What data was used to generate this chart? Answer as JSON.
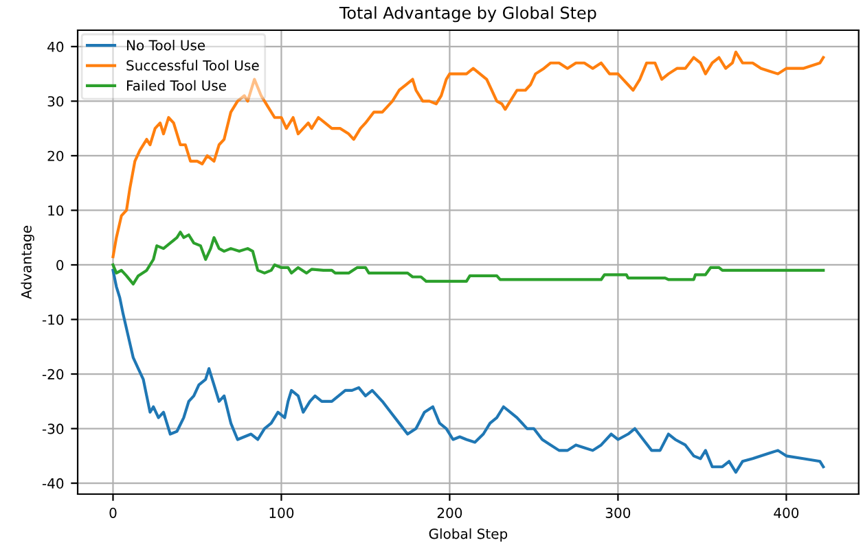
{
  "chart_data": {
    "type": "line",
    "title": "Total Advantage by Global Step",
    "xlabel": "Global Step",
    "ylabel": "Advantage",
    "xlim": [
      -21,
      443
    ],
    "ylim": [
      -42,
      43
    ],
    "xticks": [
      0,
      100,
      200,
      300,
      400
    ],
    "yticks": [
      -40,
      -30,
      -20,
      -10,
      0,
      10,
      20,
      30,
      40
    ],
    "grid": true,
    "legend": "top left",
    "marker": "none",
    "line_style": "solid",
    "series": [
      {
        "name": "No Tool Use",
        "color": "#1f77b4",
        "x": [
          0,
          2,
          4,
          6,
          9,
          12,
          15,
          18,
          20,
          22,
          24,
          27,
          30,
          32,
          34,
          38,
          42,
          45,
          48,
          51,
          55,
          57,
          60,
          63,
          66,
          70,
          74,
          78,
          82,
          86,
          90,
          94,
          98,
          102,
          104,
          106,
          110,
          113,
          117,
          120,
          124,
          130,
          134,
          138,
          142,
          146,
          150,
          154,
          160,
          165,
          170,
          175,
          180,
          185,
          190,
          194,
          198,
          202,
          206,
          210,
          215,
          220,
          224,
          228,
          232,
          236,
          240,
          246,
          250,
          255,
          260,
          265,
          270,
          275,
          280,
          285,
          290,
          296,
          300,
          306,
          310,
          315,
          320,
          325,
          330,
          334,
          340,
          345,
          349,
          352,
          356,
          362,
          366,
          370,
          374,
          380,
          385,
          390,
          395,
          400,
          410,
          420,
          422
        ],
        "values": [
          -1,
          -4,
          -6,
          -9,
          -13,
          -17,
          -19,
          -21,
          -24,
          -27,
          -26,
          -28,
          -27,
          -29,
          -31,
          -30.5,
          -28,
          -25,
          -24,
          -22,
          -21,
          -19,
          -22,
          -25,
          -24,
          -29,
          -32,
          -31.5,
          -31,
          -32,
          -30,
          -29,
          -27,
          -28,
          -25,
          -23,
          -24,
          -27,
          -25,
          -24,
          -25,
          -25,
          -24,
          -23,
          -23,
          -22.5,
          -24,
          -23,
          -25,
          -27,
          -29,
          -31,
          -30,
          -27,
          -26,
          -29,
          -30,
          -32,
          -31.5,
          -32,
          -32.5,
          -31,
          -29,
          -28,
          -26,
          -27,
          -28,
          -30,
          -30,
          -32,
          -33,
          -34,
          -34,
          -33,
          -33.5,
          -34,
          -33,
          -31,
          -32,
          -31,
          -30,
          -32,
          -34,
          -34,
          -31,
          -32,
          -33,
          -35,
          -35.5,
          -34,
          -37,
          -37,
          -36,
          -38,
          -36,
          -35.5,
          -35,
          -34.5,
          -34,
          -35,
          -35.5,
          -36,
          -37
        ]
      },
      {
        "name": "Successful Tool Use",
        "color": "#ff7f0e",
        "x": [
          0,
          2,
          5,
          8,
          10,
          13,
          16,
          20,
          22,
          25,
          28,
          30,
          33,
          36,
          40,
          43,
          46,
          50,
          53,
          56,
          60,
          63,
          66,
          70,
          74,
          78,
          80,
          84,
          88,
          92,
          96,
          100,
          103,
          107,
          110,
          113,
          116,
          118,
          122,
          126,
          130,
          135,
          140,
          143,
          147,
          150,
          155,
          160,
          166,
          170,
          174,
          178,
          180,
          184,
          188,
          192,
          195,
          198,
          200,
          205,
          210,
          214,
          218,
          222,
          225,
          228,
          231,
          233,
          236,
          240,
          245,
          248,
          251,
          256,
          260,
          265,
          270,
          275,
          280,
          285,
          290,
          295,
          300,
          303,
          306,
          309,
          313,
          317,
          322,
          326,
          330,
          335,
          340,
          345,
          349,
          352,
          356,
          360,
          364,
          368,
          370,
          374,
          380,
          385,
          390,
          395,
          400,
          410,
          420,
          422
        ],
        "values": [
          1.5,
          5,
          9,
          10,
          14,
          19,
          21,
          23,
          22,
          25,
          26,
          24,
          27,
          26,
          22,
          22,
          19,
          19,
          18.5,
          20,
          19,
          22,
          23,
          28,
          30,
          31,
          30,
          34,
          31,
          29,
          27,
          27,
          25,
          27,
          24,
          25,
          26,
          25,
          27,
          26,
          25,
          25,
          24,
          23,
          25,
          26,
          28,
          28,
          30,
          32,
          33,
          34,
          32,
          30,
          30,
          29.5,
          31,
          34,
          35,
          35,
          35,
          36,
          35,
          34,
          32,
          30,
          29.5,
          28.5,
          30,
          32,
          32,
          33,
          35,
          36,
          37,
          37,
          36,
          37,
          37,
          36,
          37,
          35,
          35,
          34,
          33,
          32,
          34,
          37,
          37,
          34,
          35,
          36,
          36,
          38,
          37,
          35,
          37,
          38,
          36,
          37,
          39,
          37,
          37,
          36,
          35.5,
          35,
          36,
          36,
          37,
          38
        ]
      },
      {
        "name": "Failed Tool Use",
        "color": "#2ca02c",
        "x": [
          0,
          2,
          5,
          8,
          12,
          15,
          20,
          24,
          26,
          30,
          34,
          38,
          40,
          42,
          45,
          48,
          52,
          55,
          58,
          60,
          63,
          66,
          70,
          75,
          80,
          83,
          86,
          90,
          94,
          96,
          100,
          104,
          106,
          110,
          115,
          118,
          125,
          130,
          132,
          140,
          145,
          150,
          152,
          175,
          178,
          183,
          186,
          210,
          212,
          228,
          230,
          290,
          292,
          305,
          306,
          328,
          330,
          345,
          346,
          352,
          355,
          360,
          362,
          422
        ],
        "values": [
          0,
          -1.5,
          -1,
          -2,
          -3.5,
          -2,
          -1,
          1,
          3.5,
          3,
          4,
          5,
          6,
          5,
          5.5,
          4,
          3.5,
          1,
          3,
          5,
          3,
          2.5,
          3,
          2.5,
          3,
          2.5,
          -1,
          -1.5,
          -1,
          0,
          -0.5,
          -0.5,
          -1.5,
          -0.5,
          -1.5,
          -0.8,
          -1,
          -1,
          -1.5,
          -1.5,
          -0.5,
          -0.5,
          -1.5,
          -1.5,
          -2.2,
          -2.2,
          -3,
          -3,
          -2,
          -2,
          -2.7,
          -2.7,
          -1.8,
          -1.8,
          -2.4,
          -2.4,
          -2.7,
          -2.7,
          -1.8,
          -1.8,
          -0.5,
          -0.5,
          -1,
          -1
        ]
      }
    ]
  }
}
